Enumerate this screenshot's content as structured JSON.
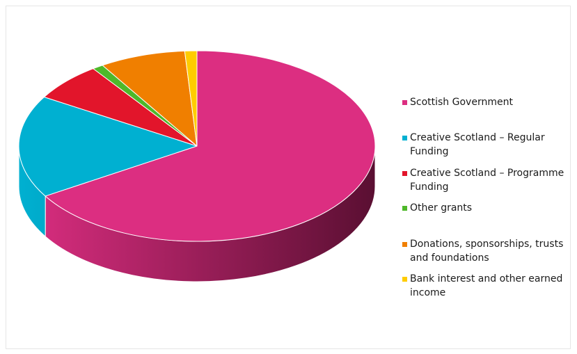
{
  "chart_data": {
    "type": "pie",
    "title": "",
    "style": "3d",
    "legend_position": "right",
    "slices": [
      {
        "label": "Scottish Government",
        "value": 66.2,
        "color": "#DC2E81",
        "side_dark": "#5A0F32"
      },
      {
        "label": "Creative Scotland – Regular Funding",
        "value": 17.4,
        "color": "#00B0D1",
        "side_dark": "#00657A"
      },
      {
        "label": "Creative Scotland – Programme Funding",
        "value": 6.5,
        "color": "#E2152B",
        "side_dark": "#7A0A16"
      },
      {
        "label": "Other grants",
        "value": 1.0,
        "color": "#4EB82A",
        "side_dark": "#2A6A14"
      },
      {
        "label": "Donations, sponsorships, trusts and foundations",
        "value": 7.8,
        "color": "#F07F00",
        "side_dark": "#8A4800"
      },
      {
        "label": "Bank interest and other earned income",
        "value": 1.1,
        "color": "#FFCC00",
        "side_dark": "#8A6E00"
      }
    ]
  }
}
